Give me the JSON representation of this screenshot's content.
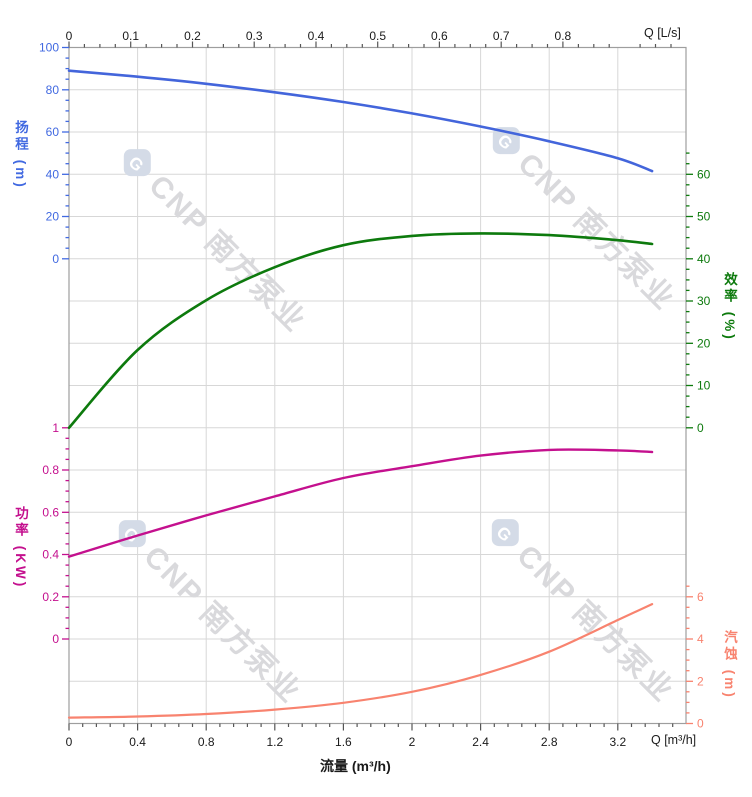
{
  "chart_data": {
    "type": "line",
    "title": "",
    "x_axis_bottom": {
      "title": "流量 (m³/h)",
      "unit_label": "Q [m³/h]",
      "unit": "m³/h",
      "major_ticks": [
        0,
        0.4,
        0.8,
        1.2,
        1.6,
        2,
        2.4,
        2.8,
        3.2
      ],
      "minor_step": 0.08,
      "range": [
        0,
        3.6
      ],
      "grid": true
    },
    "x_axis_top": {
      "unit_label": "Q [L/s]",
      "unit": "L/s",
      "major_ticks": [
        0,
        0.1,
        0.2,
        0.3,
        0.4,
        0.5,
        0.6,
        0.7,
        0.8
      ],
      "minor_step": 0.025,
      "lps_to_m3h": 3.6
    },
    "y_axes": [
      {
        "id": "head",
        "side": "left",
        "title": "扬程 (m)",
        "color": "#4169E1",
        "major_ticks": [
          100,
          80,
          60,
          40,
          20,
          0
        ],
        "minor_step": 5,
        "range": [
          0,
          100
        ]
      },
      {
        "id": "eff",
        "side": "right",
        "title": "效率 (%)",
        "color": "#0D7A0D",
        "major_ticks": [
          60,
          50,
          40,
          30,
          20,
          10,
          0
        ],
        "minor_step": 2.5,
        "range": [
          0,
          65
        ]
      },
      {
        "id": "power",
        "side": "left",
        "title": "功率 (KW)",
        "color": "#C4108E",
        "major_ticks": [
          1,
          0.8,
          0.6,
          0.4,
          0.2,
          0
        ],
        "minor_step": 0.05,
        "range": [
          0,
          1
        ]
      },
      {
        "id": "npsh",
        "side": "right",
        "title": "汽蚀 (m)",
        "color": "#F8836F",
        "major_ticks": [
          6,
          4,
          2,
          0
        ],
        "minor_step": 0.5,
        "range": [
          0,
          6.5
        ]
      }
    ],
    "series": [
      {
        "id": "head-curve",
        "name": "扬程",
        "axis": "head",
        "color": "#4365DB",
        "width": 2.6,
        "x": [
          0,
          0.4,
          0.8,
          1.2,
          1.6,
          2,
          2.4,
          2.8,
          3.2,
          3.4
        ],
        "y": [
          89,
          86.2,
          82.8,
          78.8,
          74.2,
          68.8,
          62.6,
          55.6,
          47.6,
          41.5
        ]
      },
      {
        "id": "eff-curve",
        "name": "效率",
        "axis": "eff",
        "color": "#0D7A0D",
        "width": 2.6,
        "x": [
          0,
          0.4,
          0.8,
          1.2,
          1.6,
          2,
          2.4,
          2.8,
          3.2,
          3.4
        ],
        "y": [
          0,
          18.4,
          30.2,
          38,
          43.2,
          45.4,
          46,
          45.6,
          44.4,
          43.5
        ]
      },
      {
        "id": "power-curve",
        "name": "功率",
        "axis": "power",
        "color": "#C4108E",
        "width": 2.4,
        "x": [
          0,
          0.4,
          0.8,
          1.2,
          1.6,
          2,
          2.4,
          2.8,
          3.2,
          3.4
        ],
        "y": [
          0.39,
          0.49,
          0.585,
          0.675,
          0.762,
          0.818,
          0.868,
          0.895,
          0.893,
          0.885
        ]
      },
      {
        "id": "npsh-curve",
        "name": "汽蚀",
        "axis": "npsh",
        "color": "#F8836F",
        "width": 2.2,
        "x": [
          0,
          0.4,
          0.8,
          1.2,
          1.6,
          2,
          2.4,
          2.8,
          3.2,
          3.4
        ],
        "y": [
          0.28,
          0.33,
          0.45,
          0.66,
          0.98,
          1.5,
          2.3,
          3.4,
          4.9,
          5.65
        ]
      }
    ],
    "legend": "none",
    "grid_color": "#d7d7d7",
    "frame_color": "#9e9e9e"
  },
  "watermark": {
    "logo_letter": "G",
    "text": "CNP 南方泵业",
    "color": "#d9d9dc",
    "logo_color": "#d4dbe7"
  }
}
